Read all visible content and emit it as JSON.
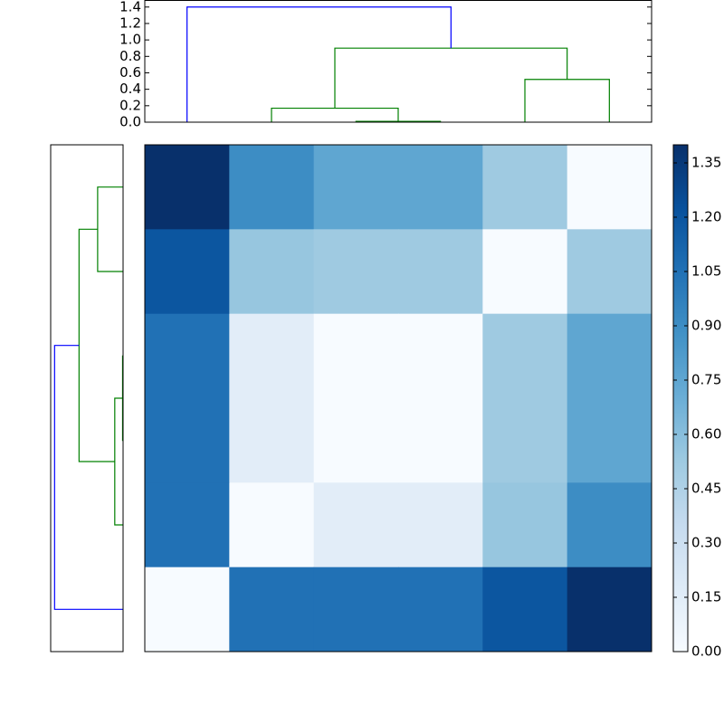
{
  "chart_data": [
    {
      "type": "dendrogram",
      "orientation": "top",
      "leaflim": [
        0,
        60
      ],
      "distlim": [
        0,
        1.48
      ],
      "distticks": [
        {
          "value": 0,
          "label": "0.0"
        },
        0.2,
        0.4,
        0.6,
        0.8,
        {
          "value": 1,
          "label": "1.0"
        },
        1.2,
        1.4
      ],
      "links": [
        {
          "leaf": [
            25,
            25,
            35,
            35
          ],
          "dist": [
            0,
            0.01,
            0.01,
            0
          ],
          "color": "#008000"
        },
        {
          "leaf": [
            15,
            15,
            30,
            30
          ],
          "dist": [
            0,
            0.17,
            0.17,
            0.01
          ],
          "color": "#008000"
        },
        {
          "leaf": [
            45,
            45,
            55,
            55
          ],
          "dist": [
            0,
            0.52,
            0.52,
            0
          ],
          "color": "#008000"
        },
        {
          "leaf": [
            22.5,
            22.5,
            50,
            50
          ],
          "dist": [
            0.17,
            0.9,
            0.9,
            0.52
          ],
          "color": "#008000"
        },
        {
          "leaf": [
            5,
            5,
            36.25,
            36.25
          ],
          "dist": [
            0,
            1.4,
            1.4,
            0.9
          ],
          "color": "#0000ff"
        }
      ]
    },
    {
      "type": "dendrogram",
      "orientation": "left",
      "leaflim": [
        0,
        60
      ],
      "distlim": [
        0,
        1.48
      ],
      "links": [
        {
          "leaf": [
            25,
            25,
            35,
            35
          ],
          "dist": [
            0,
            0.01,
            0.01,
            0
          ],
          "color": "#008000"
        },
        {
          "leaf": [
            30,
            30,
            45,
            45
          ],
          "dist": [
            0.01,
            0.17,
            0.17,
            0
          ],
          "color": "#008000"
        },
        {
          "leaf": [
            5,
            5,
            15,
            15
          ],
          "dist": [
            0,
            0.52,
            0.52,
            0
          ],
          "color": "#008000"
        },
        {
          "leaf": [
            10,
            10,
            37.5,
            37.5
          ],
          "dist": [
            0.52,
            0.9,
            0.9,
            0.17
          ],
          "color": "#008000"
        },
        {
          "leaf": [
            23.75,
            23.75,
            55,
            55
          ],
          "dist": [
            0.9,
            1.4,
            1.4,
            0
          ],
          "color": "#0000ff"
        }
      ]
    },
    {
      "type": "heatmap",
      "values": [
        [
          1.4,
          0.9,
          0.75,
          0.75,
          0.52,
          0
        ],
        [
          1.2,
          0.55,
          0.52,
          0.52,
          0,
          0.52
        ],
        [
          1.05,
          0.15,
          0,
          0,
          0.52,
          0.75
        ],
        [
          1.05,
          0.15,
          0,
          0,
          0.52,
          0.75
        ],
        [
          1.05,
          0,
          0.15,
          0.15,
          0.55,
          0.9
        ],
        [
          0,
          1.05,
          1.05,
          1.05,
          1.2,
          1.4
        ]
      ],
      "colormap": [
        "#f7fbff",
        "#deebf7",
        "#c6dbef",
        "#9ecae1",
        "#6baed6",
        "#4292c6",
        "#2171b5",
        "#08519c",
        "#08306b"
      ],
      "clim": [
        0,
        1.4
      ],
      "cticks": [
        {
          "value": 0,
          "label": "0.00"
        },
        0.15,
        {
          "value": 0.3,
          "label": "0.30"
        },
        0.45,
        {
          "value": 0.6,
          "label": "0.60"
        },
        0.75,
        {
          "value": 0.9,
          "label": "0.90"
        },
        1.05,
        {
          "value": 1.2,
          "label": "1.20"
        },
        1.35
      ]
    }
  ]
}
